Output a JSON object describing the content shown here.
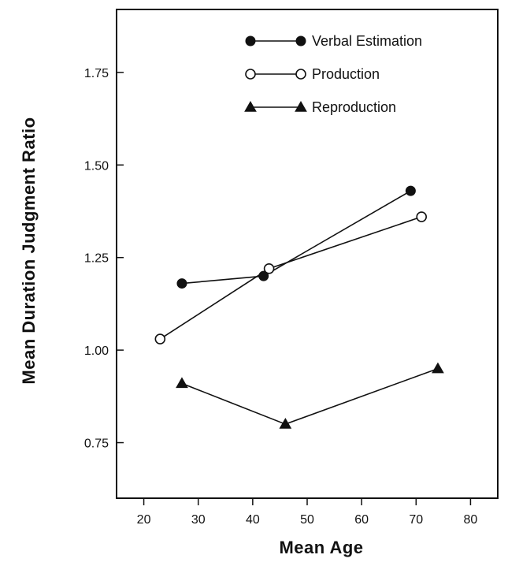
{
  "chart_data": {
    "type": "line",
    "xlabel": "Mean Age",
    "ylabel": "Mean Duration Judgment Ratio",
    "xlim": [
      15,
      85
    ],
    "ylim": [
      0.6,
      1.92
    ],
    "xticks": [
      20,
      30,
      40,
      50,
      60,
      70,
      80
    ],
    "yticks": [
      0.75,
      1.0,
      1.25,
      1.5,
      1.75
    ],
    "ytick_labels": [
      "0.75",
      "1.00",
      "1.25",
      "1.50",
      "1.75"
    ],
    "legend_position": "top-right",
    "series": [
      {
        "name": "Verbal Estimation",
        "marker": "filled-circle",
        "x": [
          27,
          42,
          69
        ],
        "y": [
          1.18,
          1.2,
          1.43
        ]
      },
      {
        "name": "Production",
        "marker": "open-circle",
        "x": [
          23,
          43,
          71
        ],
        "y": [
          1.03,
          1.22,
          1.36
        ]
      },
      {
        "name": "Reproduction",
        "marker": "filled-triangle",
        "x": [
          27,
          46,
          74
        ],
        "y": [
          0.91,
          0.8,
          0.95
        ]
      }
    ]
  }
}
